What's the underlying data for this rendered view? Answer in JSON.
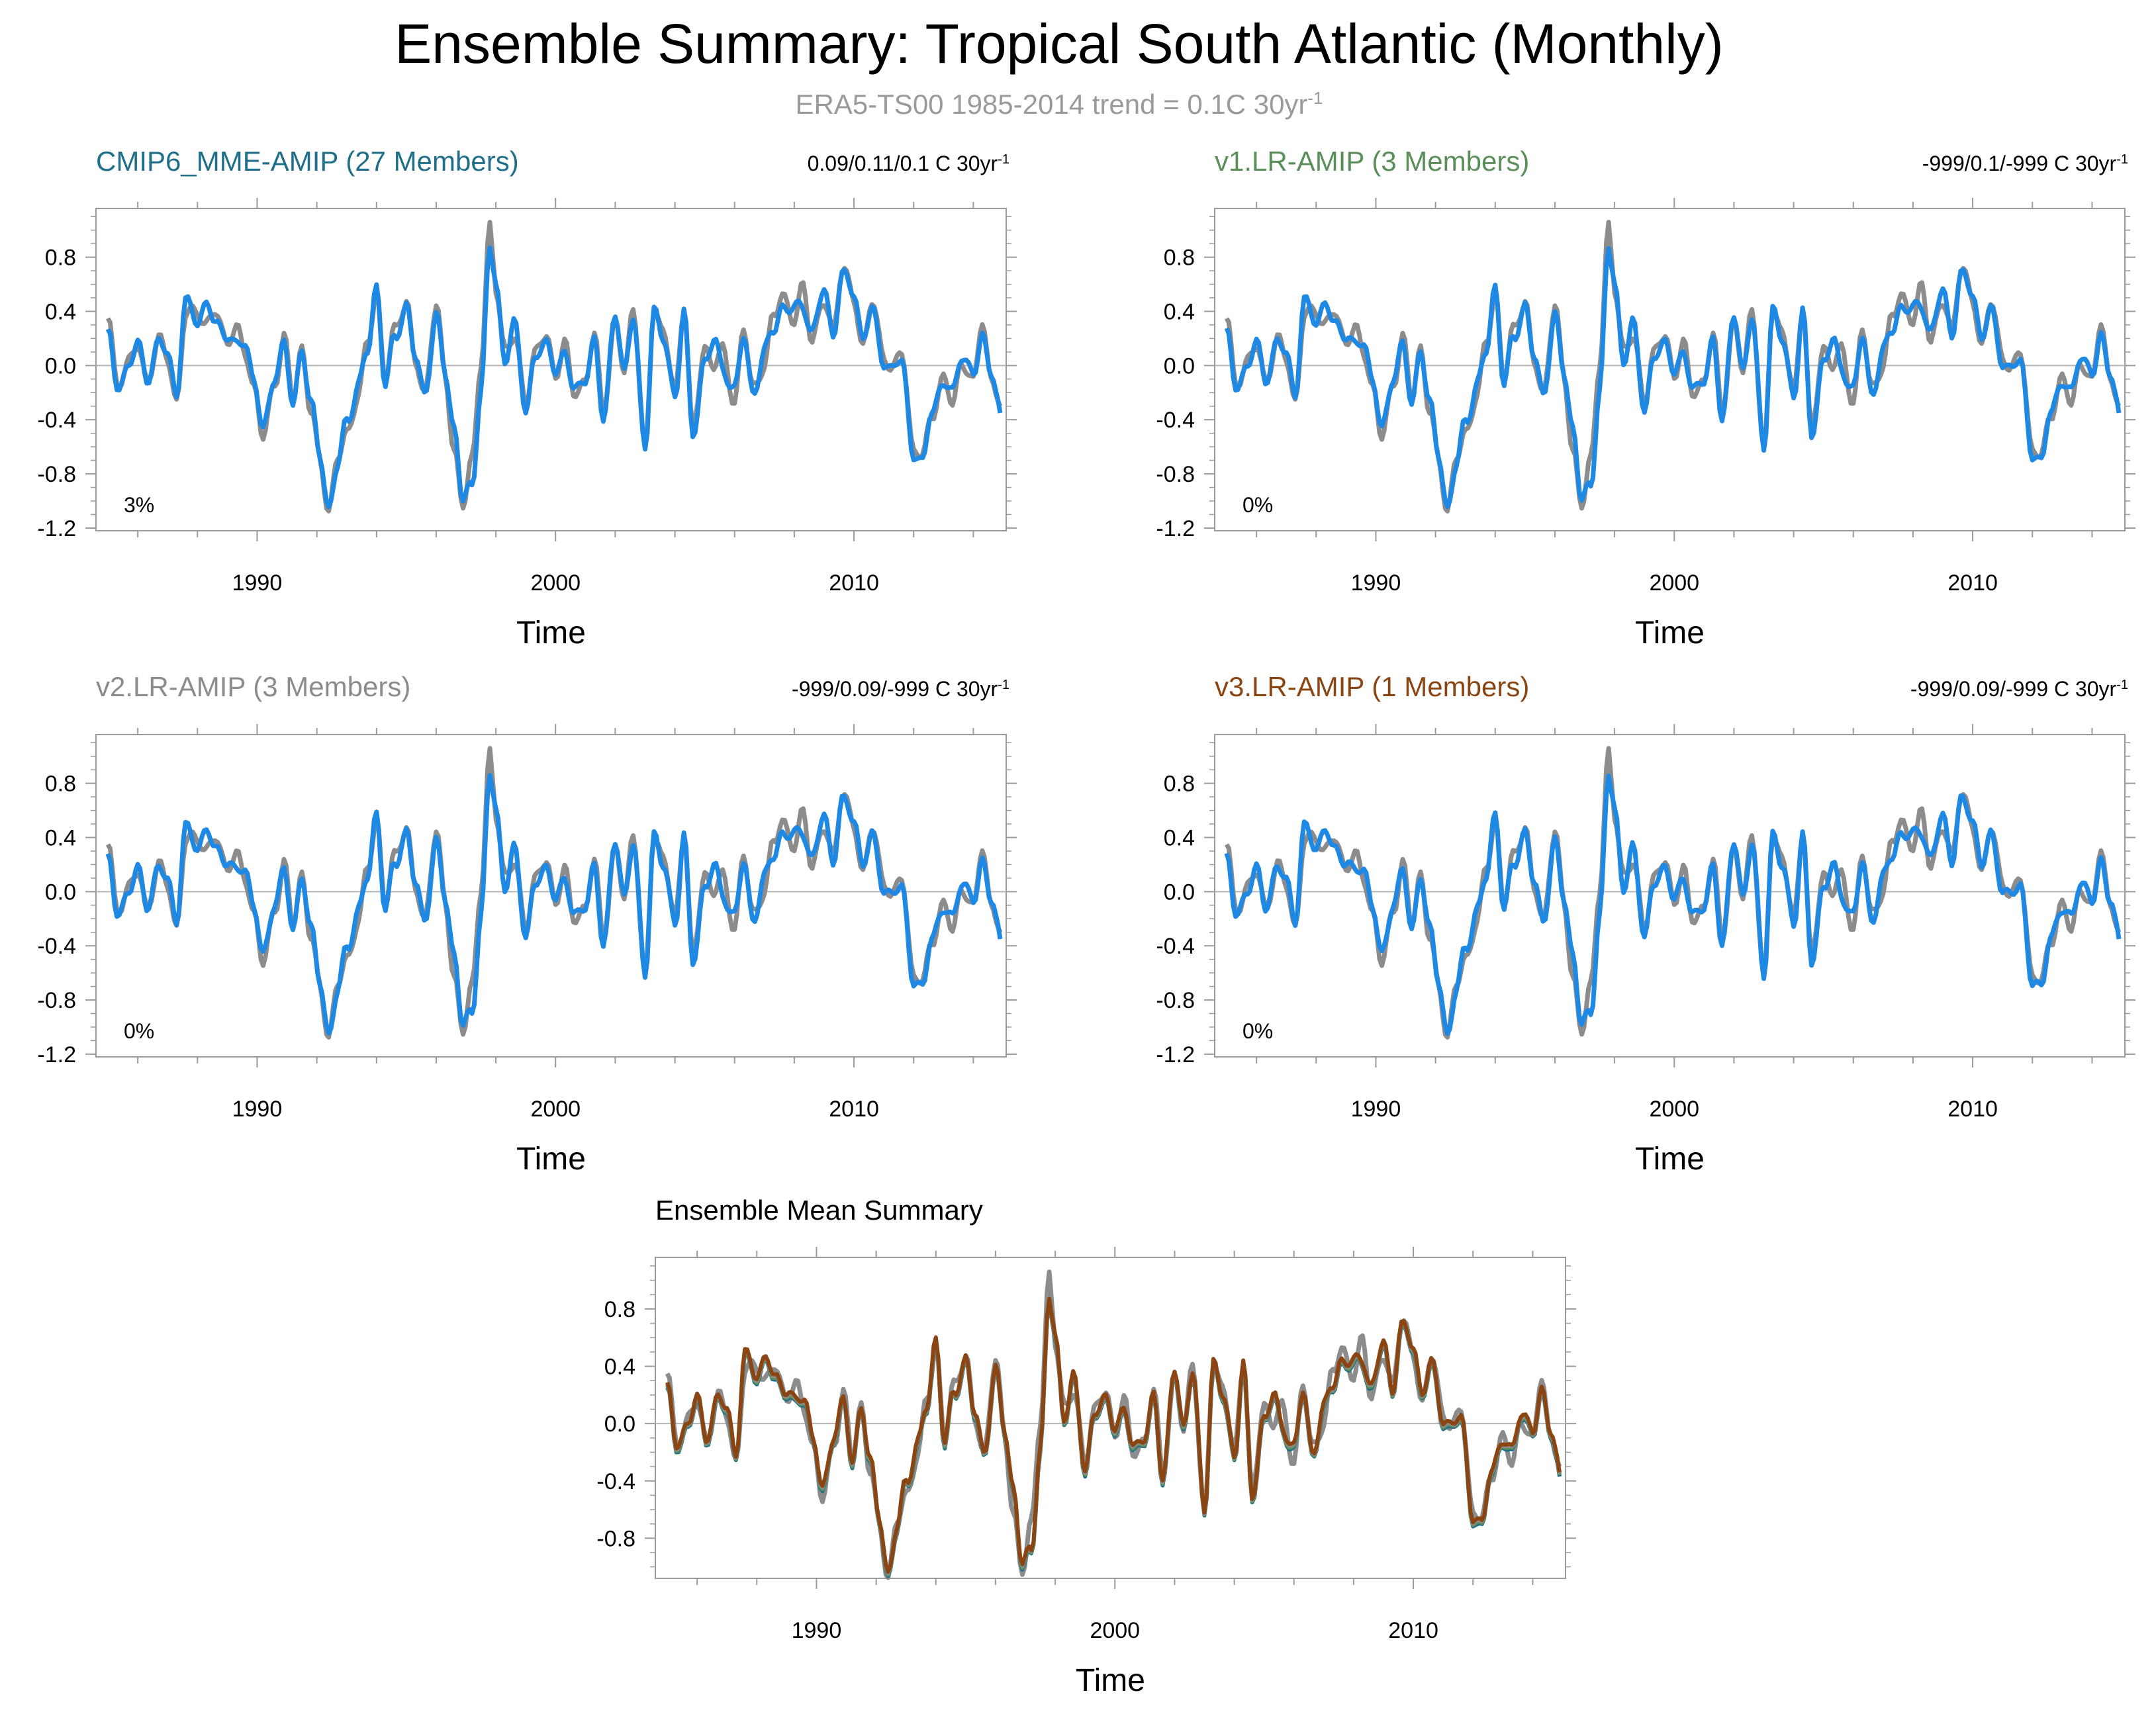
{
  "title": "Ensemble Summary: Tropical South Atlantic (Monthly)",
  "subtitle": {
    "main": "ERA5-TS00 1985-2014 trend = 0.1C 30yr",
    "sup": "-1"
  },
  "colors": {
    "observation": "#8c8c8c",
    "model_line": "#1e88e5",
    "mme": "#1f6f8b",
    "v1": "#5a8f5a",
    "v2": "#8c8c8c",
    "v3": "#8b4513",
    "frame": "#9a9a9a",
    "text": "#000000"
  },
  "chart_data": [
    {
      "type": "line",
      "panel_title": "CMIP6_MME-AMIP (27 Members)",
      "title_color": "#1f6f8b",
      "trend_label": {
        "main": "0.09/0.11/0.1 C 30yr",
        "sup": "-1"
      },
      "percent_label": "3%",
      "xlabel": "Time",
      "xlim": [
        1984.6,
        2015.1
      ],
      "ylim": [
        -1.22,
        1.16
      ],
      "yticks": [
        -1.2,
        -0.8,
        -0.4,
        0.0,
        0.4,
        0.8
      ],
      "ytick_labels": [
        "-1.2",
        "-0.8",
        "-0.4",
        "0.0",
        "0.4",
        "0.8"
      ],
      "xticks": [
        1990,
        2000,
        2010
      ],
      "xtick_labels": [
        "1990",
        "2000",
        "2010"
      ],
      "series": [
        {
          "name": "ERA5-TS00",
          "color": "#8c8c8c"
        },
        {
          "name": "CMIP6_MME-AMIP",
          "color": "#1e88e5"
        }
      ]
    },
    {
      "type": "line",
      "panel_title": "v1.LR-AMIP (3 Members)",
      "title_color": "#5a8f5a",
      "trend_label": {
        "main": "-999/0.1/-999 C 30yr",
        "sup": "-1"
      },
      "percent_label": "0%",
      "xlabel": "Time",
      "xlim": [
        1984.6,
        2015.1
      ],
      "ylim": [
        -1.22,
        1.16
      ],
      "yticks": [
        -1.2,
        -0.8,
        -0.4,
        0.0,
        0.4,
        0.8
      ],
      "ytick_labels": [
        "-1.2",
        "-0.8",
        "-0.4",
        "0.0",
        "0.4",
        "0.8"
      ],
      "xticks": [
        1990,
        2000,
        2010
      ],
      "xtick_labels": [
        "1990",
        "2000",
        "2010"
      ],
      "series": [
        {
          "name": "ERA5-TS00",
          "color": "#8c8c8c"
        },
        {
          "name": "v1.LR-AMIP",
          "color": "#1e88e5"
        }
      ]
    },
    {
      "type": "line",
      "panel_title": "v2.LR-AMIP (3 Members)",
      "title_color": "#8c8c8c",
      "trend_label": {
        "main": "-999/0.09/-999 C 30yr",
        "sup": "-1"
      },
      "percent_label": "0%",
      "xlabel": "Time",
      "xlim": [
        1984.6,
        2015.1
      ],
      "ylim": [
        -1.22,
        1.16
      ],
      "yticks": [
        -1.2,
        -0.8,
        -0.4,
        0.0,
        0.4,
        0.8
      ],
      "ytick_labels": [
        "-1.2",
        "-0.8",
        "-0.4",
        "0.0",
        "0.4",
        "0.8"
      ],
      "xticks": [
        1990,
        2000,
        2010
      ],
      "xtick_labels": [
        "1990",
        "2000",
        "2010"
      ],
      "series": [
        {
          "name": "ERA5-TS00",
          "color": "#8c8c8c"
        },
        {
          "name": "v2.LR-AMIP",
          "color": "#1e88e5"
        }
      ]
    },
    {
      "type": "line",
      "panel_title": "v3.LR-AMIP (1 Members)",
      "title_color": "#8b4513",
      "trend_label": {
        "main": "-999/0.09/-999 C 30yr",
        "sup": "-1"
      },
      "percent_label": "0%",
      "xlabel": "Time",
      "xlim": [
        1984.6,
        2015.1
      ],
      "ylim": [
        -1.22,
        1.16
      ],
      "yticks": [
        -1.2,
        -0.8,
        -0.4,
        0.0,
        0.4,
        0.8
      ],
      "ytick_labels": [
        "-1.2",
        "-0.8",
        "-0.4",
        "0.0",
        "0.4",
        "0.8"
      ],
      "xticks": [
        1990,
        2000,
        2010
      ],
      "xtick_labels": [
        "1990",
        "2000",
        "2010"
      ],
      "series": [
        {
          "name": "ERA5-TS00",
          "color": "#8c8c8c"
        },
        {
          "name": "v3.LR-AMIP",
          "color": "#1e88e5"
        }
      ]
    },
    {
      "type": "line",
      "panel_title": "Ensemble Mean Summary",
      "title_color": "#000000",
      "xlabel": "Time",
      "xlim": [
        1984.6,
        2015.1
      ],
      "ylim": [
        -1.08,
        1.16
      ],
      "yticks": [
        -0.8,
        -0.4,
        0.0,
        0.4,
        0.8
      ],
      "ytick_labels": [
        "-0.8",
        "-0.4",
        "0.0",
        "0.4",
        "0.8"
      ],
      "xticks": [
        1990,
        2000,
        2010
      ],
      "xtick_labels": [
        "1990",
        "2000",
        "2010"
      ],
      "series": [
        {
          "name": "ERA5-TS00",
          "color": "#8c8c8c"
        },
        {
          "name": "CMIP6_MME-AMIP",
          "color": "#1f6f8b"
        },
        {
          "name": "v1.LR-AMIP",
          "color": "#5a8f5a"
        },
        {
          "name": "v2.LR-AMIP",
          "color": "#8c8c8c"
        },
        {
          "name": "v3.LR-AMIP",
          "color": "#8b4513"
        }
      ]
    }
  ],
  "anomaly_series": {
    "start_year": 1985.0,
    "x": [
      1985.0,
      1985.3,
      1985.7,
      1986.0,
      1986.3,
      1986.7,
      1987.0,
      1987.3,
      1987.6,
      1988.0,
      1988.3,
      1988.6,
      1989.0,
      1989.3,
      1989.6,
      1989.9,
      1990.2,
      1990.6,
      1990.9,
      1991.2,
      1991.5,
      1991.8,
      1992.1,
      1992.4,
      1992.7,
      1993.0,
      1993.4,
      1993.7,
      1994.0,
      1994.3,
      1994.6,
      1995.0,
      1995.3,
      1995.6,
      1996.0,
      1996.3,
      1996.6,
      1996.9,
      1997.2,
      1997.5,
      1997.8,
      1998.0,
      1998.3,
      1998.6,
      1999.0,
      1999.3,
      1999.7,
      2000.0,
      2000.3,
      2000.6,
      2001.0,
      2001.3,
      2001.6,
      2002.0,
      2002.3,
      2002.6,
      2003.0,
      2003.3,
      2003.6,
      2004.0,
      2004.3,
      2004.6,
      2005.0,
      2005.3,
      2005.6,
      2006.0,
      2006.3,
      2006.6,
      2007.0,
      2007.3,
      2007.6,
      2008.0,
      2008.3,
      2008.6,
      2009.0,
      2009.3,
      2009.6,
      2010.0,
      2010.3,
      2010.6,
      2011.0,
      2011.3,
      2011.6,
      2012.0,
      2012.3,
      2012.6,
      2013.0,
      2013.3,
      2013.6,
      2014.0,
      2014.3,
      2014.6,
      2014.9
    ],
    "observed": [
      0.35,
      -0.15,
      0.05,
      0.12,
      -0.1,
      0.18,
      0.05,
      -0.25,
      0.35,
      0.42,
      0.3,
      0.38,
      0.2,
      0.25,
      0.1,
      -0.15,
      -0.55,
      -0.1,
      0.2,
      -0.25,
      0.15,
      -0.35,
      -0.7,
      -1.05,
      -0.7,
      -0.5,
      -0.2,
      0.15,
      0.55,
      -0.1,
      0.25,
      0.5,
      0.0,
      -0.2,
      0.45,
      -0.1,
      -0.6,
      -1.05,
      -0.7,
      0.05,
      1.0,
      0.55,
      0.15,
      0.2,
      -0.25,
      0.1,
      0.2,
      -0.05,
      0.15,
      -0.2,
      -0.1,
      0.2,
      -0.3,
      0.3,
      -0.05,
      0.45,
      -0.65,
      0.45,
      0.25,
      -0.2,
      0.45,
      -0.5,
      0.15,
      0.0,
      0.1,
      -0.25,
      0.25,
      -0.15,
      0.0,
      0.35,
      0.55,
      0.3,
      0.6,
      0.2,
      0.45,
      0.3,
      0.7,
      0.5,
      0.15,
      0.45,
      0.1,
      -0.05,
      0.1,
      -0.6,
      -0.7,
      -0.35,
      -0.1,
      -0.3,
      0.05,
      -0.15,
      0.35,
      -0.1,
      -0.3
    ],
    "model": [
      0.22,
      -0.15,
      0.0,
      0.15,
      -0.08,
      0.15,
      0.1,
      -0.2,
      0.45,
      0.35,
      0.45,
      0.3,
      0.25,
      0.12,
      0.18,
      -0.1,
      -0.5,
      -0.05,
      0.15,
      -0.3,
      0.15,
      -0.3,
      -0.65,
      -1.05,
      -0.75,
      -0.4,
      -0.15,
      0.1,
      0.6,
      -0.15,
      0.2,
      0.45,
      0.05,
      -0.2,
      0.35,
      -0.05,
      -0.45,
      -1.0,
      -0.9,
      -0.15,
      0.85,
      0.6,
      0.05,
      0.3,
      -0.3,
      0.05,
      0.15,
      0.0,
      0.05,
      -0.15,
      -0.1,
      0.15,
      -0.35,
      0.35,
      -0.05,
      0.4,
      -0.65,
      0.45,
      0.2,
      -0.25,
      0.45,
      -0.55,
      0.05,
      0.2,
      -0.05,
      -0.15,
      0.2,
      -0.2,
      0.1,
      0.25,
      0.45,
      0.4,
      0.45,
      0.25,
      0.55,
      0.25,
      0.65,
      0.55,
      0.2,
      0.4,
      0.05,
      -0.05,
      0.05,
      -0.65,
      -0.75,
      -0.3,
      -0.15,
      -0.2,
      0.1,
      -0.1,
      0.25,
      -0.05,
      -0.35
    ]
  }
}
